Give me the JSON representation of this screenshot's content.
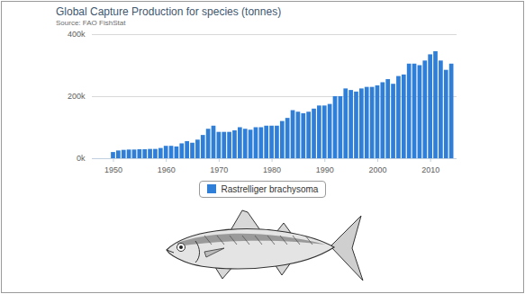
{
  "chart_data": {
    "type": "bar",
    "title": "Global Capture Production for species (tonnes)",
    "subtitle": "Source: FAO FishStat",
    "x": [
      1950,
      1951,
      1952,
      1953,
      1954,
      1955,
      1956,
      1957,
      1958,
      1959,
      1960,
      1961,
      1962,
      1963,
      1964,
      1965,
      1966,
      1967,
      1968,
      1969,
      1970,
      1971,
      1972,
      1973,
      1974,
      1975,
      1976,
      1977,
      1978,
      1979,
      1980,
      1981,
      1982,
      1983,
      1984,
      1985,
      1986,
      1987,
      1988,
      1989,
      1990,
      1991,
      1992,
      1993,
      1994,
      1995,
      1996,
      1997,
      1998,
      1999,
      2000,
      2001,
      2002,
      2003,
      2004,
      2005,
      2006,
      2007,
      2008,
      2009,
      2010,
      2011,
      2012,
      2013,
      2014
    ],
    "series": [
      {
        "name": "Rastrelliger brachysoma",
        "color": "#2f7ed8",
        "values": [
          20000,
          25000,
          27000,
          28000,
          28000,
          29000,
          29000,
          30000,
          30000,
          33000,
          40000,
          40000,
          38000,
          48000,
          55000,
          50000,
          60000,
          75000,
          95000,
          105000,
          85000,
          85000,
          85000,
          90000,
          100000,
          95000,
          92000,
          100000,
          100000,
          105000,
          105000,
          105000,
          120000,
          130000,
          155000,
          150000,
          145000,
          150000,
          160000,
          170000,
          170000,
          175000,
          200000,
          200000,
          225000,
          220000,
          215000,
          225000,
          230000,
          230000,
          235000,
          245000,
          255000,
          240000,
          265000,
          270000,
          305000,
          305000,
          300000,
          315000,
          335000,
          345000,
          315000,
          285000,
          305000
        ]
      }
    ],
    "xlim": [
      1946,
      2015
    ],
    "xticks": [
      1950,
      1960,
      1970,
      1980,
      1990,
      2000,
      2010
    ],
    "ylim": [
      0,
      400000
    ],
    "yticks": [
      {
        "value": 0,
        "label": "0k"
      },
      {
        "value": 200000,
        "label": "200k"
      },
      {
        "value": 400000,
        "label": "400k"
      }
    ],
    "grid": true,
    "legend": "bottom"
  }
}
